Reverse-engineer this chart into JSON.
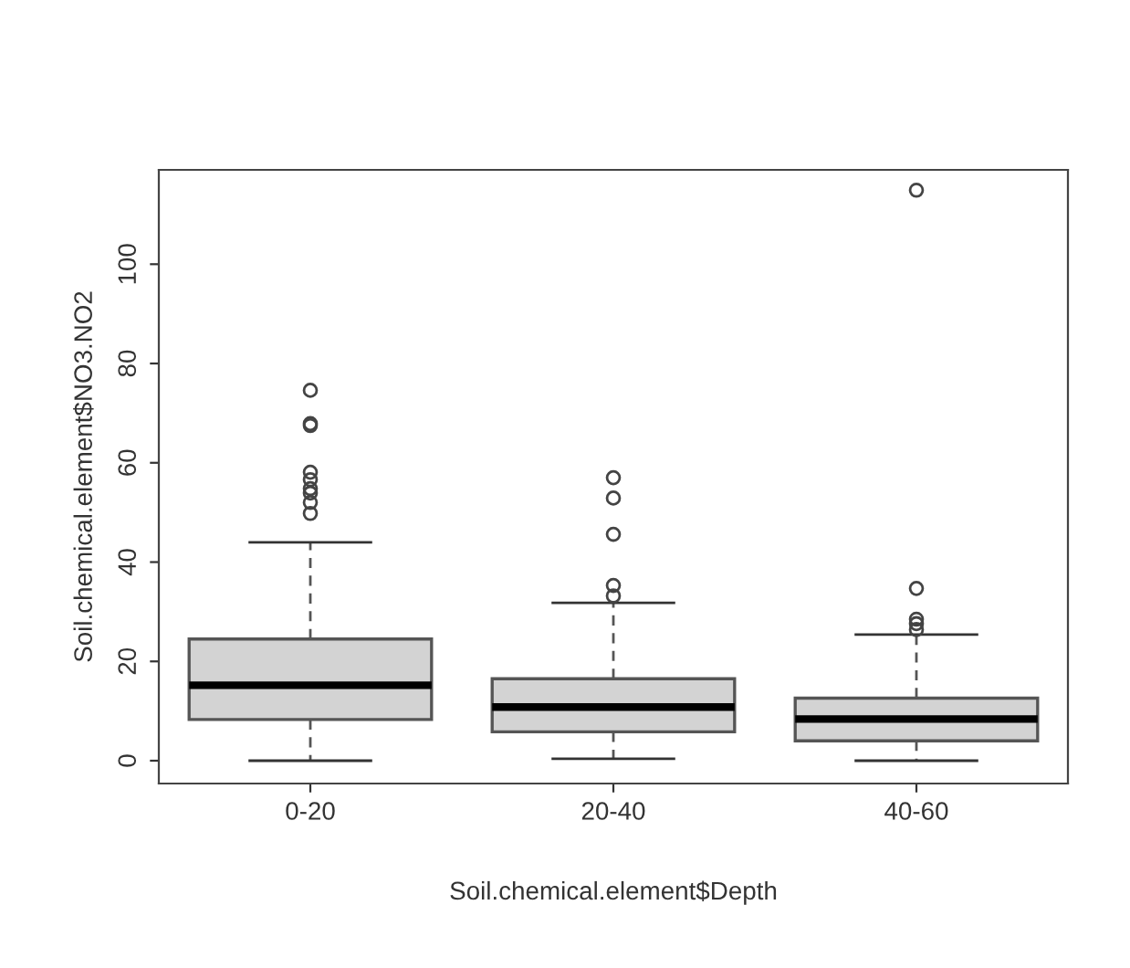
{
  "chart_data": {
    "type": "box",
    "xlabel": "Soil.chemical.element$Depth",
    "ylabel": "Soil.chemical.element$NO3.NO2",
    "categories": [
      "0-20",
      "20-40",
      "40-60"
    ],
    "color": "#d3d3d3",
    "boxes": [
      {
        "low": 0,
        "q1": 8.3,
        "median": 15.2,
        "q3": 24.5,
        "high": 44,
        "outliers": [
          74.6,
          67.9,
          67.5,
          58.1,
          56.6,
          54.8,
          53.9,
          52,
          49.8
        ]
      },
      {
        "low": 0.4,
        "q1": 5.8,
        "median": 10.8,
        "q3": 16.5,
        "high": 31.8,
        "outliers": [
          57,
          52.9,
          45.6,
          35.3,
          33.2
        ]
      },
      {
        "low": 0,
        "q1": 4.0,
        "median": 8.4,
        "q3": 12.6,
        "high": 25.4,
        "outliers": [
          114.9,
          34.7,
          28.5,
          27.6,
          26.4
        ]
      }
    ],
    "ylim": [
      -4.6,
      119
    ],
    "yticks": [
      0,
      20,
      40,
      60,
      80,
      100
    ],
    "grid": false
  }
}
